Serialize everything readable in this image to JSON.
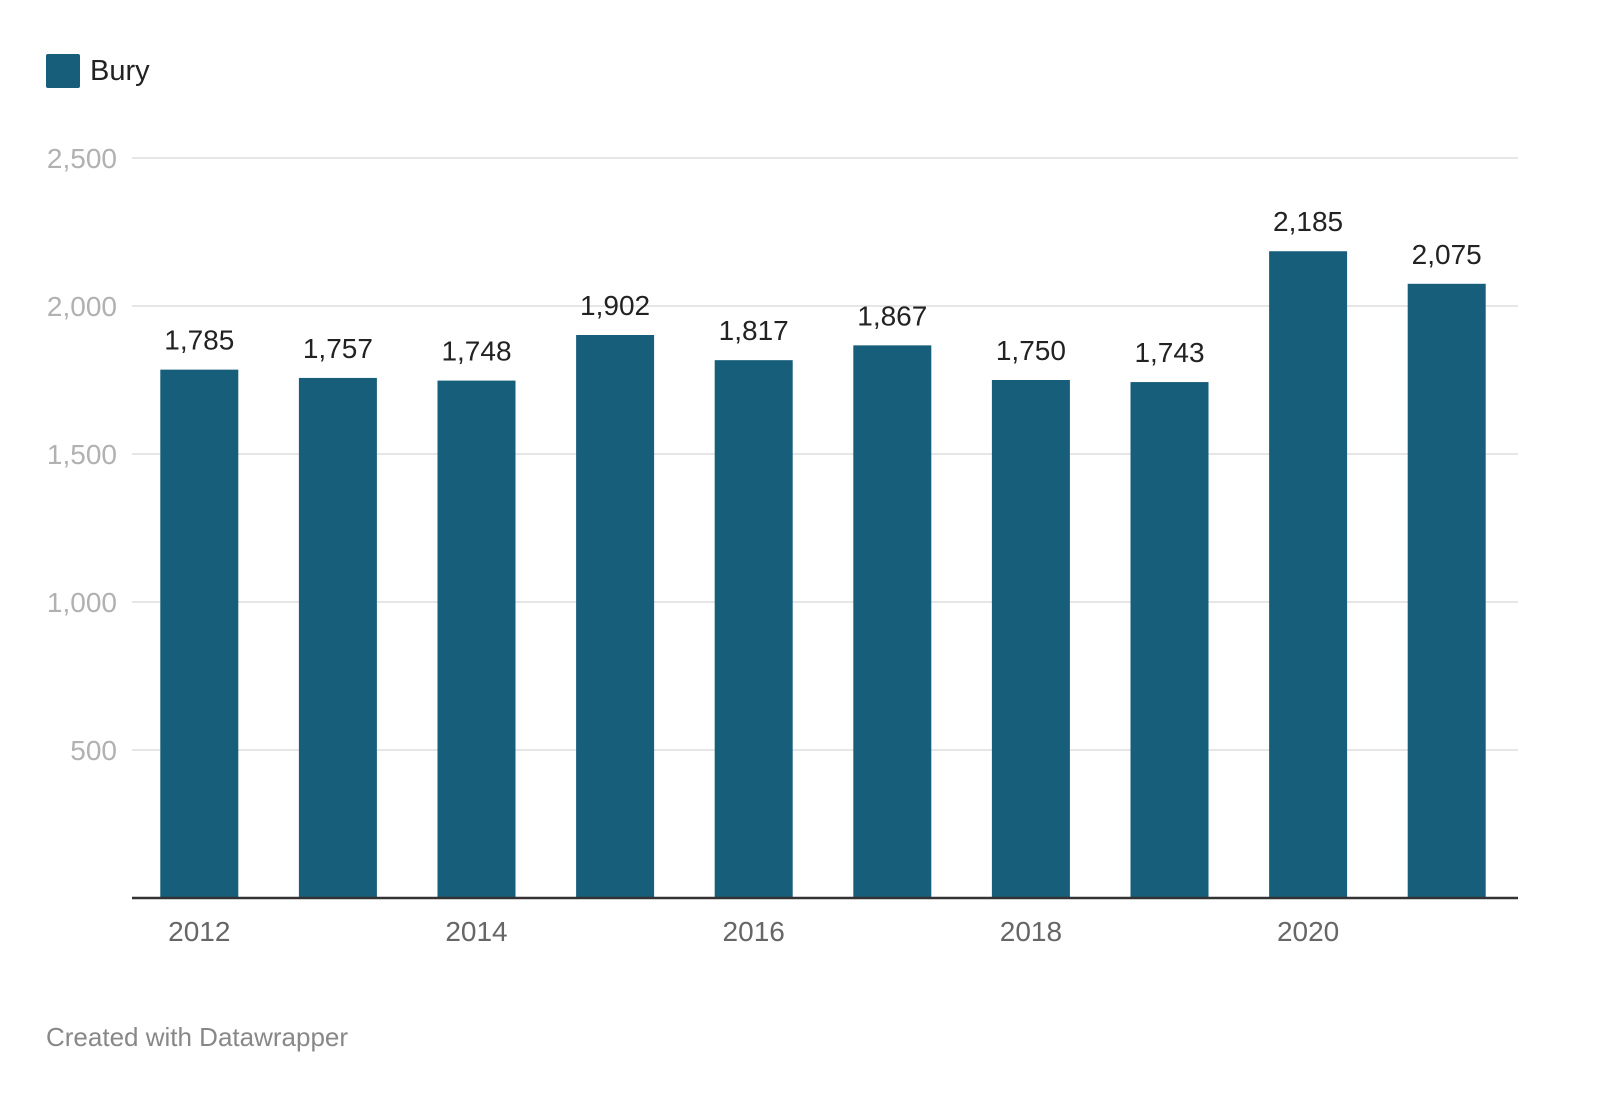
{
  "legend": {
    "label": "Bury",
    "color": "#175e7a"
  },
  "footer": {
    "text": "Created with Datawrapper"
  },
  "chart_data": {
    "type": "bar",
    "categories": [
      "2012",
      "2013",
      "2014",
      "2015",
      "2016",
      "2017",
      "2018",
      "2019",
      "2020",
      "2021"
    ],
    "x_tick_labels": [
      "2012",
      "2014",
      "2016",
      "2018",
      "2020"
    ],
    "series": [
      {
        "name": "Bury",
        "color": "#175e7a",
        "values": [
          1785,
          1757,
          1748,
          1902,
          1817,
          1867,
          1750,
          1743,
          2185,
          2075
        ],
        "value_labels": [
          "1,785",
          "1,757",
          "1,748",
          "1,902",
          "1,817",
          "1,867",
          "1,750",
          "1,743",
          "2,185",
          "2,075"
        ]
      }
    ],
    "yticks": [
      500,
      1000,
      1500,
      2000,
      2500
    ],
    "ytick_labels": [
      "500",
      "1,000",
      "1,500",
      "2,000",
      "2,500"
    ],
    "ylim": [
      0,
      2500
    ],
    "grid": true,
    "legend_position": "top-left",
    "title": "",
    "xlabel": "",
    "ylabel": ""
  }
}
